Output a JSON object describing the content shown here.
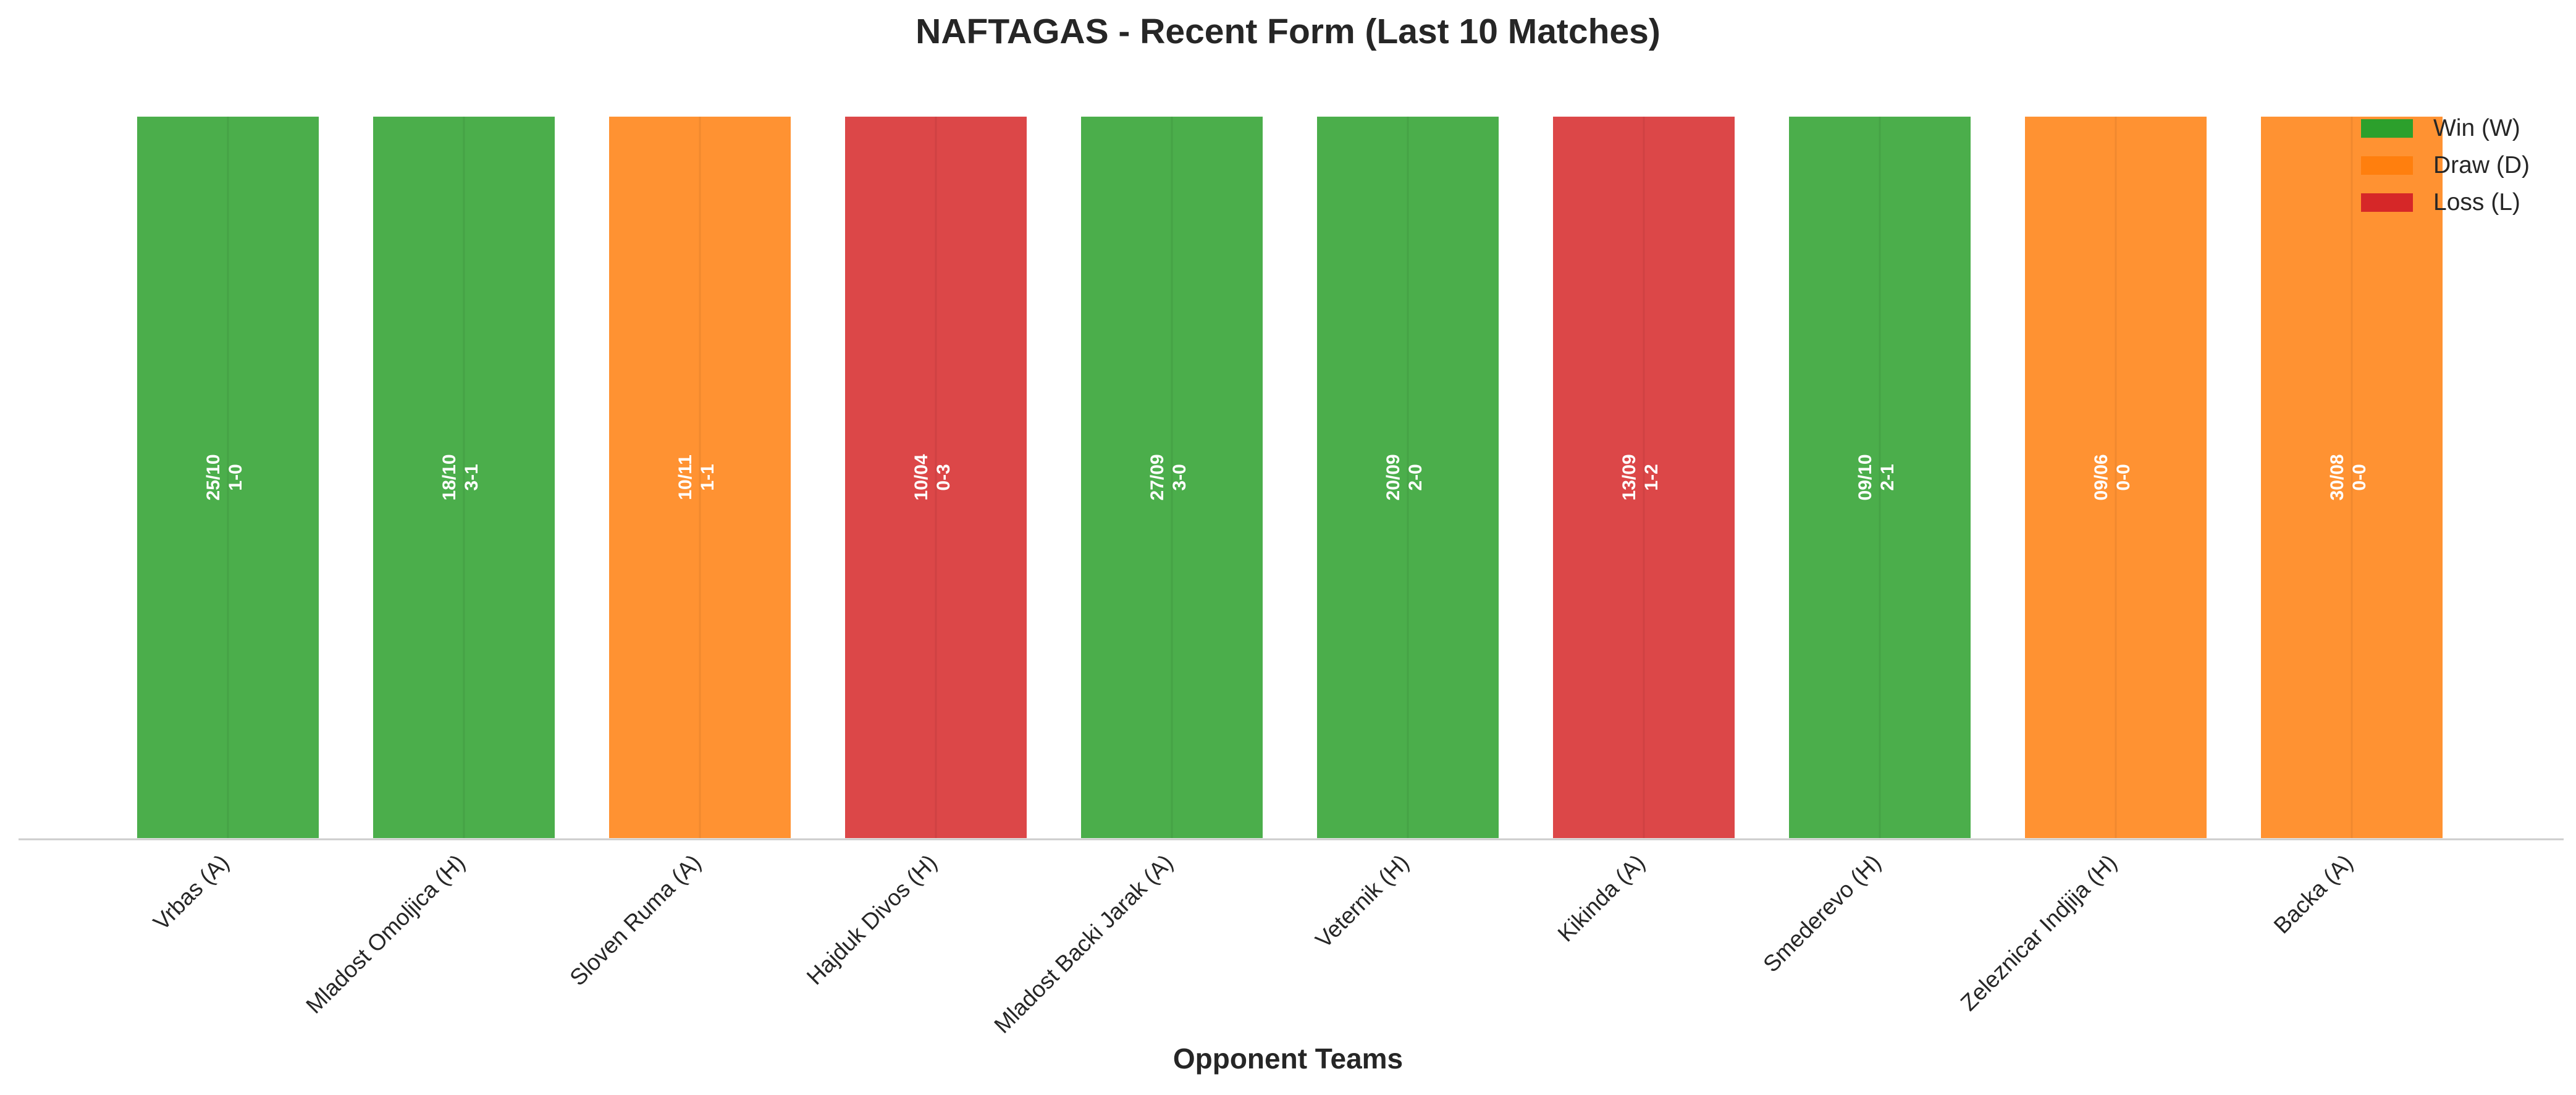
{
  "chart_data": {
    "type": "bar",
    "title": "NAFTAGAS - Recent Form (Last 10 Matches)",
    "xlabel": "Opponent Teams",
    "ylabel": "",
    "grid": false,
    "legend_position": "top-right",
    "categories": [
      "Vrbas (A)",
      "Mladost Omoljica (H)",
      "Sloven Ruma (A)",
      "Hajduk Divos (H)",
      "Mladost Backi Jarak (A)",
      "Veternik (H)",
      "Kikinda (A)",
      "Smederevo (H)",
      "Zeleznicar Indjija (H)",
      "Backa (A)"
    ],
    "values": [
      1,
      1,
      1,
      1,
      1,
      1,
      1,
      1,
      1,
      1
    ],
    "results": [
      "W",
      "W",
      "D",
      "L",
      "W",
      "W",
      "L",
      "W",
      "D",
      "D"
    ],
    "dates": [
      "25/10",
      "18/10",
      "10/11",
      "10/04",
      "27/09",
      "20/09",
      "13/09",
      "09/10",
      "09/06",
      "30/08"
    ],
    "scores": [
      "1-0",
      "3-1",
      "1-1",
      "0-3",
      "3-0",
      "2-0",
      "1-2",
      "2-1",
      "0-0",
      "0-0"
    ],
    "ylim": [
      0,
      1.04
    ],
    "legend": [
      {
        "key": "W",
        "label": "Win (W)",
        "color": "#2ca02c"
      },
      {
        "key": "D",
        "label": "Draw (D)",
        "color": "#ff7f0e"
      },
      {
        "key": "L",
        "label": "Loss (L)",
        "color": "#d62728"
      }
    ]
  }
}
